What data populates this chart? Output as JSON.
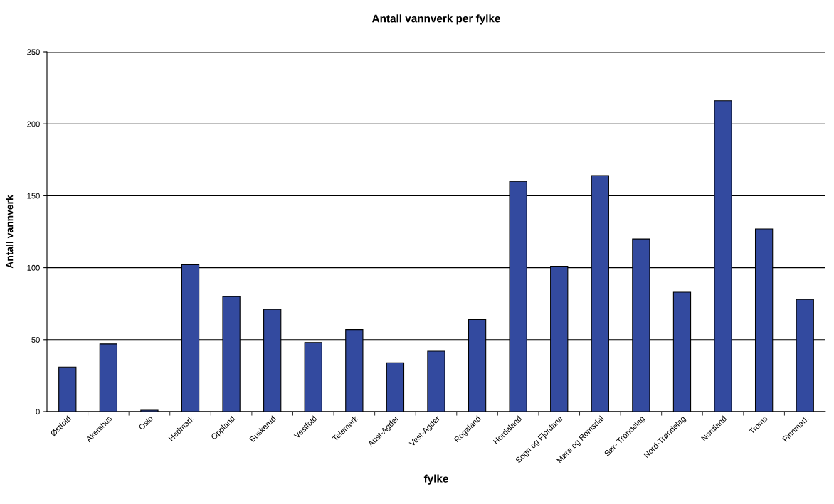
{
  "chart_data": {
    "type": "bar",
    "title": "Antall vannverk per fylke",
    "xlabel": "fylke",
    "ylabel": "Antall vannverk",
    "categories": [
      "Østfold",
      "Akershus",
      "Oslo",
      "Hedmark",
      "Oppland",
      "Buskerud",
      "Vestfold",
      "Telemark",
      "Aust-Agder",
      "Vest-Agder",
      "Rogaland",
      "Hordaland",
      "Sogn og Fjordane",
      "Møre og Romsdal",
      "Sør- Trøndelag",
      "Nord-Trøndelag",
      "Nordland",
      "Troms",
      "Finnmark"
    ],
    "values": [
      31,
      47,
      1,
      102,
      80,
      71,
      48,
      57,
      34,
      42,
      64,
      160,
      101,
      164,
      120,
      83,
      216,
      127,
      78
    ],
    "color": "#334a9f",
    "ylim": [
      0,
      250
    ],
    "yticks": [
      0,
      50,
      100,
      150,
      200,
      250
    ],
    "grid": "y",
    "legend": false
  }
}
